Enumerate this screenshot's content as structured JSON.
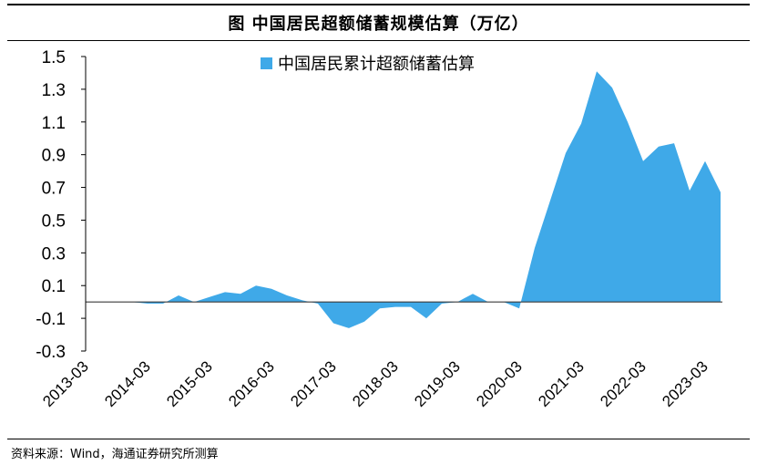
{
  "header": {
    "title": "图  中国居民超额储蓄规模估算（万亿）"
  },
  "footer": {
    "source": "资料来源：Wind，海通证券研究所测算"
  },
  "colors": {
    "area": "#3FA9E8",
    "axis": "#000000",
    "zero_line": "#3a3a3a"
  },
  "chart_data": {
    "type": "area",
    "title": "图  中国居民超额储蓄规模估算（万亿）",
    "xlabel": "",
    "ylabel": "",
    "ylim": [
      -0.3,
      1.5
    ],
    "yticks": [
      "1.5",
      "1.3",
      "1.1",
      "0.9",
      "0.7",
      "0.5",
      "0.3",
      "0.1",
      "-0.1",
      "-0.3"
    ],
    "xticks": [
      "2013-03",
      "2014-03",
      "2015-03",
      "2016-03",
      "2017-03",
      "2018-03",
      "2019-03",
      "2020-03",
      "2021-03",
      "2022-03",
      "2023-03"
    ],
    "legend": "top-center",
    "series": [
      {
        "name": "中国居民累计超额储蓄估算",
        "values": [
          0,
          0,
          0,
          0,
          -0.01,
          -0.01,
          0.04,
          0.0,
          0.03,
          0.06,
          0.05,
          0.1,
          0.08,
          0.04,
          0.01,
          -0.01,
          -0.13,
          -0.16,
          -0.12,
          -0.04,
          -0.03,
          -0.03,
          -0.1,
          -0.01,
          0.0,
          0.05,
          0.0,
          0.0,
          -0.04,
          0.33,
          0.62,
          0.91,
          1.09,
          1.41,
          1.31,
          1.1,
          0.86,
          0.95,
          0.97,
          0.68,
          0.86,
          0.67
        ]
      }
    ]
  }
}
